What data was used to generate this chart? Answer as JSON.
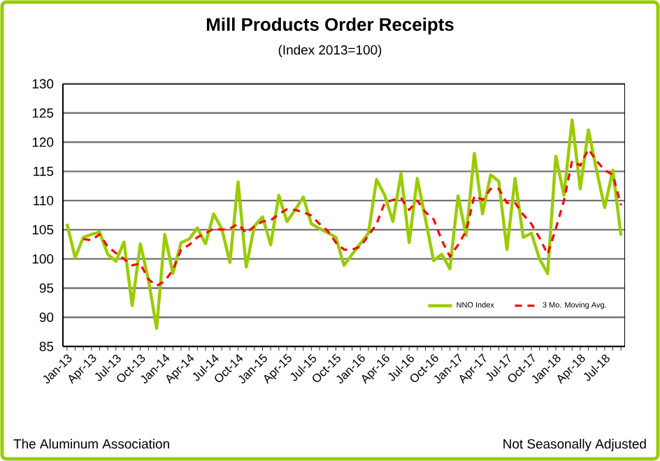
{
  "chart_data": {
    "type": "line",
    "title": "Mill Products Order Receipts",
    "subtitle": "(Index 2013=100)",
    "categories": [
      "Jan-13",
      null,
      null,
      "Apr-13",
      null,
      null,
      "Jul-13",
      null,
      null,
      "Oct-13",
      null,
      null,
      "Jan-14",
      null,
      null,
      "Apr-14",
      null,
      null,
      "Jul-14",
      null,
      null,
      "Oct-14",
      null,
      null,
      "Jan-15",
      null,
      null,
      "Apr-15",
      null,
      null,
      "Jul-15",
      null,
      null,
      "Oct-15",
      null,
      null,
      "Jan-16",
      null,
      null,
      "Apr-16",
      null,
      null,
      "Jul-16",
      null,
      null,
      "Oct-16",
      null,
      null,
      "Jan-17",
      null,
      null,
      "Apr-17",
      null,
      null,
      "Jul-17",
      null,
      null,
      "Oct-17",
      null,
      null,
      "Jan-18",
      null,
      null,
      "Apr-18",
      null,
      null,
      "Jul-18",
      null,
      null
    ],
    "series": [
      {
        "name": "NNO Index",
        "color": "#99cc00",
        "line_style": "solid",
        "values": [
          106,
          100.2,
          103.7,
          104.2,
          104.6,
          100.8,
          99.6,
          102.9,
          92,
          102.6,
          96.4,
          88.1,
          104.2,
          97.5,
          102.8,
          103.4,
          105.3,
          102.6,
          107.7,
          105.2,
          99.4,
          113.2,
          98.6,
          105.6,
          107.2,
          102.4,
          110.9,
          106.4,
          108.4,
          110.6,
          106,
          105.2,
          104.5,
          103.7,
          98.9,
          100.8,
          102.6,
          104.4,
          113.6,
          110.9,
          106.4,
          114.6,
          102.8,
          113.8,
          106.8,
          99.7,
          100.8,
          98.3,
          110.8,
          104,
          118.1,
          107.7,
          114.4,
          113.3,
          101.6,
          113.8,
          103.7,
          104.4,
          100,
          97.5,
          117.6,
          110.9,
          123.8,
          112,
          122.1,
          115.2,
          108.8,
          115.2,
          104
        ]
      },
      {
        "name": "3 Mo. Moving Avg.",
        "color": "#ff0000",
        "line_style": "dashed",
        "values": [
          null,
          null,
          103.4,
          103.2,
          104.2,
          102.1,
          101,
          100,
          98.9,
          99.2,
          96.5,
          95.4,
          96.2,
          98.1,
          101.6,
          102.4,
          103.7,
          104.4,
          105.2,
          105,
          105.2,
          106,
          104.4,
          105.6,
          106.4,
          106.6,
          107.7,
          108.5,
          108.4,
          108,
          107.4,
          106,
          104.8,
          102.8,
          101.6,
          101.6,
          102.1,
          104,
          106,
          109.6,
          110.1,
          110.4,
          108.4,
          110,
          108,
          106.8,
          103.2,
          100.4,
          102.4,
          104.8,
          110.8,
          110.1,
          112,
          112,
          109.6,
          109.6,
          107.6,
          106,
          103.6,
          100.8,
          105.2,
          110,
          116.8,
          116,
          118.8,
          116.8,
          115.2,
          114.4,
          109.2
        ]
      }
    ],
    "ylim": [
      85,
      130
    ],
    "yticks": [
      85,
      90,
      95,
      100,
      105,
      110,
      115,
      120,
      125,
      130
    ],
    "grid": "y",
    "legend": "bottom right",
    "annotations": [
      "The Aluminum Association",
      "Not Seasonally Adjusted"
    ]
  }
}
